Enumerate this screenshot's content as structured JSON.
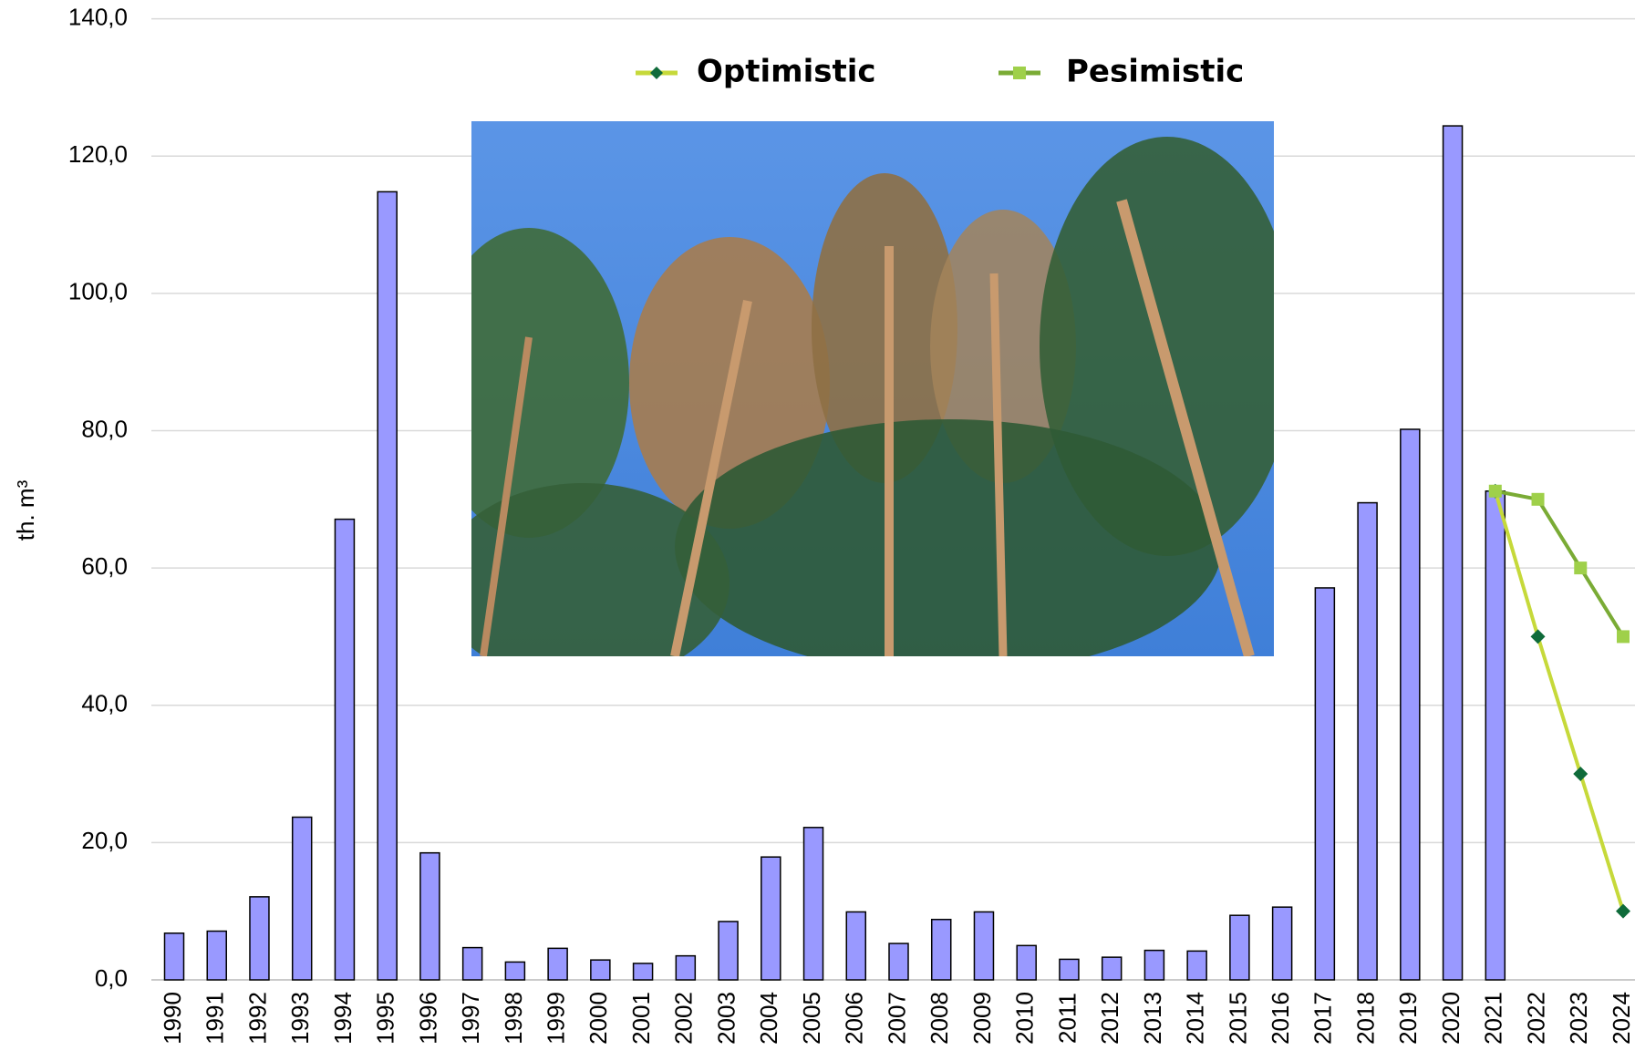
{
  "chart_data": {
    "type": "bar",
    "y_label": "th. m³",
    "categories": [
      "1990",
      "1991",
      "1992",
      "1993",
      "1994",
      "1995",
      "1996",
      "1997",
      "1998",
      "1999",
      "2000",
      "2001",
      "2002",
      "2003",
      "2004",
      "2005",
      "2006",
      "2007",
      "2008",
      "2009",
      "2010",
      "2011",
      "2012",
      "2013",
      "2014",
      "2015",
      "2016",
      "2017",
      "2018",
      "2019",
      "2020",
      "2021",
      "2022",
      "2023",
      "2024"
    ],
    "values": [
      6.8,
      7.1,
      12.1,
      23.7,
      67.1,
      114.8,
      18.5,
      4.7,
      2.6,
      4.6,
      2.9,
      2.4,
      3.5,
      8.5,
      17.9,
      22.2,
      9.9,
      5.3,
      8.8,
      9.9,
      5.0,
      3.0,
      3.3,
      4.3,
      4.2,
      9.4,
      10.6,
      57.1,
      69.5,
      80.2,
      124.4,
      71.2,
      null,
      null,
      null
    ],
    "color": "#9999ff",
    "series": [
      {
        "name": "Optimistic",
        "type": "line",
        "color": "#c6d93a",
        "marker_color": "#0f6b3a",
        "marker": "diamond",
        "values": [
          null,
          null,
          null,
          null,
          null,
          null,
          null,
          null,
          null,
          null,
          null,
          null,
          null,
          null,
          null,
          null,
          null,
          null,
          null,
          null,
          null,
          null,
          null,
          null,
          null,
          null,
          null,
          null,
          null,
          null,
          null,
          71.2,
          50,
          30,
          10
        ]
      },
      {
        "name": "Pesimistic",
        "type": "line",
        "color": "#7aab35",
        "marker_color": "#9fd04a",
        "marker": "square",
        "values": [
          null,
          null,
          null,
          null,
          null,
          null,
          null,
          null,
          null,
          null,
          null,
          null,
          null,
          null,
          null,
          null,
          null,
          null,
          null,
          null,
          null,
          null,
          null,
          null,
          null,
          null,
          null,
          null,
          null,
          null,
          null,
          71.2,
          70,
          60,
          50
        ]
      }
    ],
    "ylim": [
      0,
      140
    ],
    "yticks": [
      {
        "value": 0,
        "label": "0,0"
      },
      {
        "value": 20,
        "label": "20,0"
      },
      {
        "value": 40,
        "label": "40,0"
      },
      {
        "value": 60,
        "label": "60,0"
      },
      {
        "value": 80,
        "label": "80,0"
      },
      {
        "value": 100,
        "label": "100,0"
      },
      {
        "value": 120,
        "label": "120,0"
      },
      {
        "value": 140,
        "label": "140,0"
      }
    ],
    "grid": true,
    "legend": "top"
  }
}
